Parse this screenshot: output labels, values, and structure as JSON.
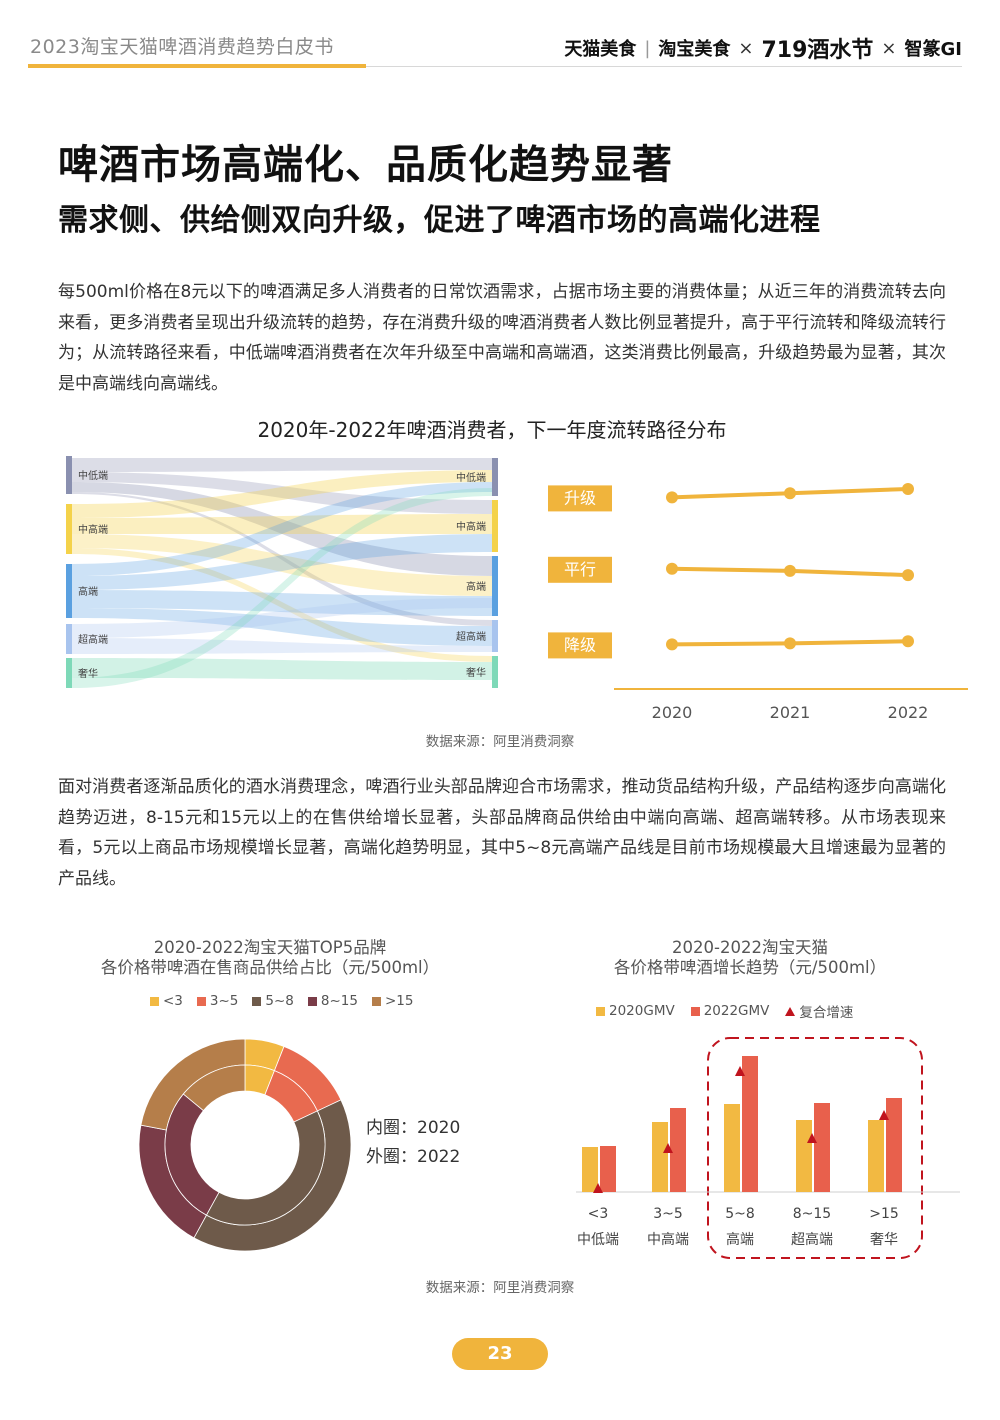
{
  "header": {
    "doc_title": "2023淘宝天猫啤酒消费趋势白皮书",
    "logos": [
      "天猫美食",
      "淘宝美食",
      "719酒水节",
      "智篆GI"
    ],
    "separator": "|",
    "cross": "×",
    "accent_color": "#f0b43c"
  },
  "page": {
    "main_title": "啤酒市场高端化、品质化趋势显著",
    "sub_title": "需求侧、供给侧双向升级，促进了啤酒市场的高端化进程",
    "para1": "每500ml价格在8元以下的啤酒满足多人消费者的日常饮酒需求，占据市场主要的消费体量；从近三年的消费流转去向来看，更多消费者呈现出升级流转的趋势，存在消费升级的啤酒消费者人数比例显著提升，高于平行流转和降级流转行为；从流转路径来看，中低端啤酒消费者在次年升级至中高端和高端酒，这类消费比例最高，升级趋势最为显著，其次是中高端线向高端线。",
    "chart1_title": "2020年-2022年啤酒消费者，下一年度流转路径分布",
    "source_label": "数据来源：阿里消费洞察",
    "para2": "面对消费者逐渐品质化的酒水消费理念，啤酒行业头部品牌迎合市场需求，推动货品结构升级，产品结构逐步向高端化趋势迈进，8-15元和15元以上的在售供给增长显著，头部品牌商品供给由中端向高端、超高端转移。从市场表现来看，5元以上商品市场规模增长显著，高端化趋势明显，其中5~8元高端产品线是目前市场规模最大且增速最为显著的产品线。",
    "page_number": "23"
  },
  "chart_data": [
    {
      "type": "sankey",
      "title": "2020年-2022年啤酒消费者，下一年度流转路径分布",
      "left_nodes": [
        "中低端",
        "中高端",
        "高端",
        "超高端",
        "奢华"
      ],
      "right_nodes": [
        "中低端",
        "中高端",
        "高端",
        "超高端",
        "奢华"
      ],
      "node_colors": [
        "#8a90b0",
        "#f4d24a",
        "#5aa0e0",
        "#a8c4ee",
        "#7ed9b8"
      ]
    },
    {
      "type": "line",
      "x": [
        "2020",
        "2021",
        "2022"
      ],
      "series": [
        {
          "name": "升级",
          "values": [
            86,
            88,
            90
          ]
        },
        {
          "name": "平行",
          "values": [
            52,
            51,
            49
          ]
        },
        {
          "name": "降级",
          "values": [
            16,
            16.5,
            17.5
          ]
        }
      ],
      "ylim": [
        0,
        100
      ],
      "color": "#f0b43c"
    },
    {
      "type": "pie",
      "title": "2020-2022淘宝天猫TOP5品牌 各价格带啤酒在售商品供给占比（元/500ml）",
      "title_lines": [
        "2020-2022淘宝天猫TOP5品牌",
        "各价格带啤酒在售商品供给占比（元/500ml）"
      ],
      "categories": [
        "<3",
        "3~5",
        "5~8",
        "8~15",
        ">15"
      ],
      "colors": [
        "#f2b942",
        "#e86a50",
        "#6e5a4a",
        "#7a3c48",
        "#b57e4a"
      ],
      "inner_label": "内圈：2020",
      "outer_label": "外圈：2022",
      "series": [
        {
          "name": "2020",
          "values": [
            6,
            12,
            40,
            28,
            14
          ]
        },
        {
          "name": "2022",
          "values": [
            6,
            12,
            40,
            20,
            22
          ]
        }
      ]
    },
    {
      "type": "bar",
      "title": "2020-2022淘宝天猫 各价格带啤酒增长趋势（元/500ml）",
      "title_lines": [
        "2020-2022淘宝天猫",
        "各价格带啤酒增长趋势（元/500ml）"
      ],
      "categories": [
        "<3",
        "3~5",
        "5~8",
        "8~15",
        ">15"
      ],
      "category_tiers": [
        "中低端",
        "中高端",
        "高端",
        "超高端",
        "奢华"
      ],
      "series": [
        {
          "name": "2020GMV",
          "values": [
            45,
            70,
            88,
            72,
            72
          ]
        },
        {
          "name": "2022GMV",
          "values": [
            46,
            84,
            136,
            89,
            94
          ]
        },
        {
          "name": "复合增速",
          "values": [
            3,
            43,
            120,
            53,
            76
          ]
        }
      ],
      "colors": [
        "#f2b942",
        "#e8604c",
        "#c0141e"
      ],
      "highlight": [
        "5~8",
        "8~15",
        ">15"
      ]
    }
  ]
}
